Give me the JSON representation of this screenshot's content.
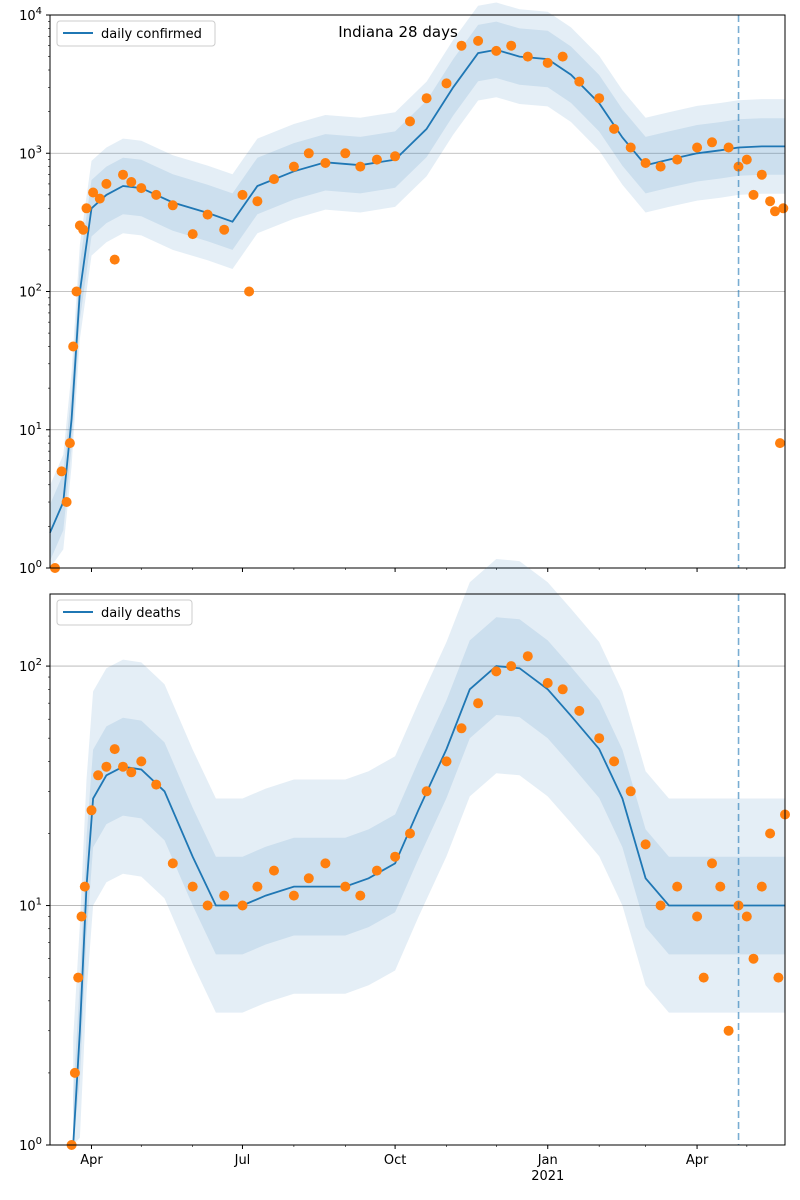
{
  "colors": {
    "line": "#1f77b4",
    "points": "#ff7f0e",
    "band": "#1f77b4",
    "vline": "#1f77b4",
    "grid": "#b0b0b0"
  },
  "chart_data": [
    {
      "type": "line",
      "title": "Indiana 28 days",
      "legend": [
        "daily confirmed"
      ],
      "legend_placement": "top-left",
      "yscale": "log",
      "ylim": [
        1,
        10000
      ],
      "ytick_labels": [
        "10^0",
        "10^1",
        "10^2",
        "10^3",
        "10^4"
      ],
      "xlim": [
        "2020-03-07",
        "2021-05-24"
      ],
      "xtick_labels": [
        "Apr",
        "Jul",
        "Oct",
        "Jan",
        "Apr"
      ],
      "xtick_dates": [
        "2020-04-01",
        "2020-07-01",
        "2020-10-01",
        "2021-01-01",
        "2021-04-01"
      ],
      "xtick_year_label": "2021",
      "grid": "horizontal",
      "forecast_start": "2021-04-26",
      "series": [
        {
          "name": "daily confirmed",
          "kind": "fit",
          "x": [
            "2020-03-07",
            "2020-03-15",
            "2020-03-20",
            "2020-03-25",
            "2020-04-01",
            "2020-04-10",
            "2020-04-20",
            "2020-05-01",
            "2020-05-20",
            "2020-06-10",
            "2020-06-25",
            "2020-07-10",
            "2020-08-01",
            "2020-08-20",
            "2020-09-10",
            "2020-10-01",
            "2020-10-20",
            "2020-11-05",
            "2020-11-20",
            "2020-12-01",
            "2020-12-15",
            "2021-01-01",
            "2021-01-15",
            "2021-02-01",
            "2021-02-15",
            "2021-03-01",
            "2021-03-15",
            "2021-04-01",
            "2021-04-15",
            "2021-04-26",
            "2021-05-10",
            "2021-05-24"
          ],
          "y": [
            1.8,
            3,
            12,
            100,
            400,
            500,
            580,
            560,
            440,
            370,
            320,
            580,
            740,
            860,
            820,
            900,
            1500,
            3000,
            5300,
            5600,
            5000,
            4800,
            3700,
            2300,
            1300,
            820,
            900,
            1000,
            1050,
            1100,
            1120,
            1120
          ]
        },
        {
          "name": "daily confirmed",
          "kind": "observed",
          "x": [
            "2020-03-10",
            "2020-03-14",
            "2020-03-17",
            "2020-03-19",
            "2020-03-21",
            "2020-03-23",
            "2020-03-25",
            "2020-03-27",
            "2020-03-29",
            "2020-04-02",
            "2020-04-06",
            "2020-04-10",
            "2020-04-15",
            "2020-04-20",
            "2020-04-25",
            "2020-05-01",
            "2020-05-10",
            "2020-05-20",
            "2020-06-01",
            "2020-06-10",
            "2020-06-20",
            "2020-07-01",
            "2020-07-05",
            "2020-07-10",
            "2020-07-20",
            "2020-08-01",
            "2020-08-10",
            "2020-08-20",
            "2020-09-01",
            "2020-09-10",
            "2020-09-20",
            "2020-10-01",
            "2020-10-10",
            "2020-10-20",
            "2020-11-01",
            "2020-11-10",
            "2020-11-20",
            "2020-12-01",
            "2020-12-10",
            "2020-12-20",
            "2021-01-01",
            "2021-01-10",
            "2021-01-20",
            "2021-02-01",
            "2021-02-10",
            "2021-02-20",
            "2021-03-01",
            "2021-03-10",
            "2021-03-20",
            "2021-04-01",
            "2021-04-10",
            "2021-04-20",
            "2021-04-26",
            "2021-05-01",
            "2021-05-05",
            "2021-05-10",
            "2021-05-15",
            "2021-05-18",
            "2021-05-21",
            "2021-05-23"
          ],
          "y": [
            1,
            5,
            3,
            8,
            40,
            100,
            300,
            280,
            400,
            520,
            470,
            600,
            170,
            700,
            620,
            560,
            500,
            420,
            260,
            360,
            280,
            500,
            100,
            450,
            650,
            800,
            1000,
            850,
            1000,
            800,
            900,
            950,
            1700,
            2500,
            3200,
            6000,
            6500,
            5500,
            6000,
            5000,
            4500,
            5000,
            3300,
            2500,
            1500,
            1100,
            850,
            800,
            900,
            1100,
            1200,
            1100,
            800,
            900,
            500,
            700,
            450,
            380,
            8,
            400
          ]
        }
      ]
    },
    {
      "type": "line",
      "title": "",
      "legend": [
        "daily deaths"
      ],
      "legend_placement": "top-left",
      "yscale": "log",
      "ylim": [
        1,
        200
      ],
      "ytick_labels": [
        "10^0",
        "10^1",
        "10^2"
      ],
      "xlim": [
        "2020-03-07",
        "2021-05-24"
      ],
      "xtick_labels": [
        "Apr",
        "Jul",
        "Oct",
        "Jan",
        "Apr"
      ],
      "xtick_dates": [
        "2020-04-01",
        "2020-07-01",
        "2020-10-01",
        "2021-01-01",
        "2021-04-01"
      ],
      "xtick_year_label": "2021",
      "grid": "horizontal",
      "forecast_start": "2021-04-26",
      "series": [
        {
          "name": "daily deaths",
          "kind": "fit",
          "x": [
            "2020-03-21",
            "2020-03-25",
            "2020-03-29",
            "2020-04-02",
            "2020-04-10",
            "2020-04-20",
            "2020-05-01",
            "2020-05-15",
            "2020-06-01",
            "2020-06-15",
            "2020-07-01",
            "2020-07-15",
            "2020-08-01",
            "2020-08-15",
            "2020-09-01",
            "2020-09-15",
            "2020-10-01",
            "2020-10-15",
            "2020-11-01",
            "2020-11-15",
            "2020-12-01",
            "2020-12-15",
            "2021-01-01",
            "2021-01-15",
            "2021-02-01",
            "2021-02-15",
            "2021-03-01",
            "2021-03-15",
            "2021-04-01",
            "2021-04-26",
            "2021-05-10",
            "2021-05-24"
          ],
          "y": [
            1,
            3,
            12,
            28,
            35,
            38,
            37,
            30,
            16,
            10,
            10,
            11,
            12,
            12,
            12,
            13,
            15,
            25,
            45,
            80,
            100,
            98,
            80,
            62,
            45,
            28,
            13,
            10,
            10,
            10,
            10,
            10
          ]
        },
        {
          "name": "daily deaths",
          "kind": "observed",
          "x": [
            "2020-03-20",
            "2020-03-22",
            "2020-03-24",
            "2020-03-26",
            "2020-03-28",
            "2020-04-01",
            "2020-04-05",
            "2020-04-10",
            "2020-04-15",
            "2020-04-20",
            "2020-04-25",
            "2020-05-01",
            "2020-05-10",
            "2020-05-20",
            "2020-06-01",
            "2020-06-10",
            "2020-06-20",
            "2020-07-01",
            "2020-07-10",
            "2020-07-20",
            "2020-08-01",
            "2020-08-10",
            "2020-08-20",
            "2020-09-01",
            "2020-09-10",
            "2020-09-20",
            "2020-10-01",
            "2020-10-10",
            "2020-10-20",
            "2020-11-01",
            "2020-11-10",
            "2020-11-20",
            "2020-12-01",
            "2020-12-10",
            "2020-12-20",
            "2021-01-01",
            "2021-01-10",
            "2021-01-20",
            "2021-02-01",
            "2021-02-10",
            "2021-02-20",
            "2021-03-01",
            "2021-03-10",
            "2021-03-20",
            "2021-04-01",
            "2021-04-05",
            "2021-04-10",
            "2021-04-15",
            "2021-04-20",
            "2021-04-26",
            "2021-05-01",
            "2021-05-05",
            "2021-05-10",
            "2021-05-15",
            "2021-05-20",
            "2021-05-24"
          ],
          "y": [
            1,
            2,
            5,
            9,
            12,
            25,
            35,
            38,
            45,
            38,
            36,
            40,
            32,
            15,
            12,
            10,
            11,
            10,
            12,
            14,
            11,
            13,
            15,
            12,
            11,
            14,
            16,
            20,
            30,
            40,
            55,
            70,
            95,
            100,
            110,
            85,
            80,
            65,
            50,
            40,
            30,
            18,
            10,
            12,
            9,
            5,
            15,
            12,
            3,
            10,
            9,
            6,
            12,
            20,
            5,
            24
          ]
        }
      ]
    }
  ]
}
